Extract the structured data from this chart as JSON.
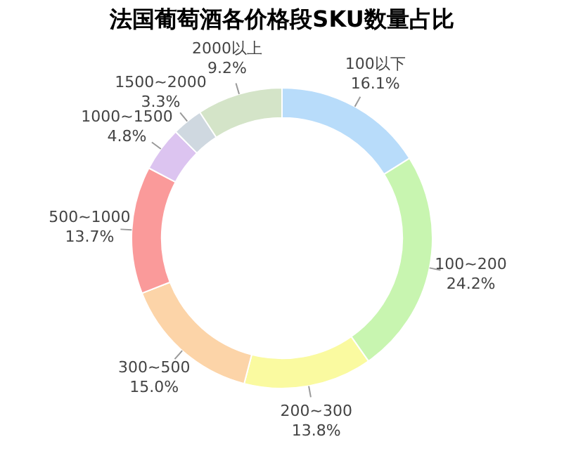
{
  "chart_data": {
    "type": "donut",
    "title": "法国葡萄酒各价格段SKU数量占比",
    "categories": [
      "100以下",
      "100~200",
      "200~300",
      "300~500",
      "500~1000",
      "1000~1500",
      "1500~2000",
      "2000以上"
    ],
    "values": [
      16.1,
      24.2,
      13.8,
      15.0,
      13.7,
      4.8,
      3.3,
      9.2
    ],
    "value_labels": [
      "16.1%",
      "24.2%",
      "13.8%",
      "15.0%",
      "13.7%",
      "4.8%",
      "3.3%",
      "9.2%"
    ],
    "colors": [
      "#b8dcfa",
      "#c8f5b0",
      "#fafaa0",
      "#fcd4a8",
      "#fa9a9a",
      "#dcc4f0",
      "#cfd8e0",
      "#d4e4c8"
    ],
    "legend": false
  }
}
